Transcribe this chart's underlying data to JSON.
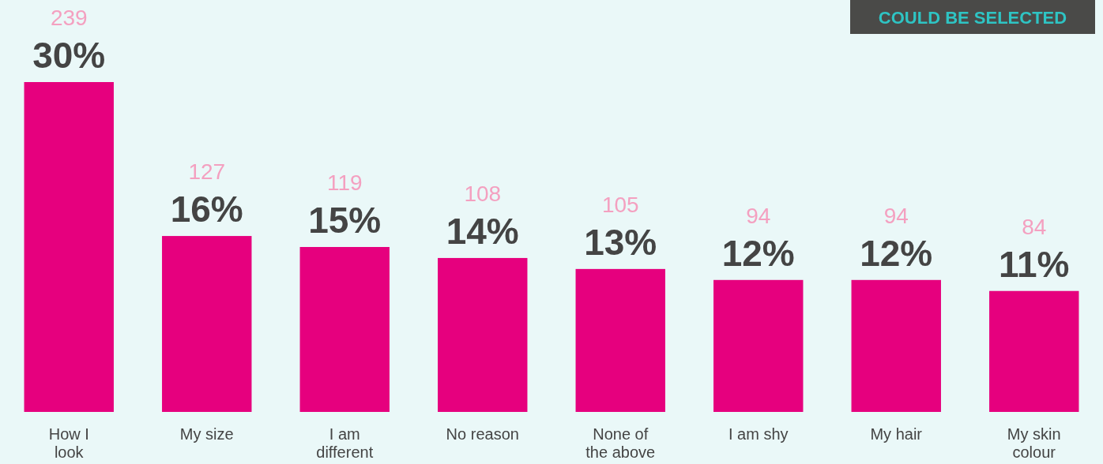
{
  "chart_data": {
    "type": "bar",
    "categories": [
      "How I look",
      "My size",
      "I am different",
      "No reason",
      "None of the above",
      "I am shy",
      "My hair",
      "My skin colour"
    ],
    "values": [
      30,
      16,
      15,
      14,
      13,
      12,
      12,
      11
    ],
    "value_labels": [
      "30%",
      "16%",
      "15%",
      "14%",
      "13%",
      "12%",
      "12%",
      "11%"
    ],
    "color": "#e6007e",
    "annotations": [
      {
        "text": "239",
        "x": "How I look",
        "y": 30
      },
      {
        "text": "127",
        "x": "My size",
        "y": 16
      },
      {
        "text": "119",
        "x": "I am different",
        "y": 15
      },
      {
        "text": "108",
        "x": "No reason",
        "y": 14
      },
      {
        "text": "105",
        "x": "None of the above",
        "y": 13
      },
      {
        "text": "94",
        "x": "I am shy",
        "y": 12
      },
      {
        "text": "94",
        "x": "My hair",
        "y": 12
      },
      {
        "text": "84",
        "x": "My skin colour",
        "y": 11
      },
      "COULD BE SELECTED"
    ]
  }
}
